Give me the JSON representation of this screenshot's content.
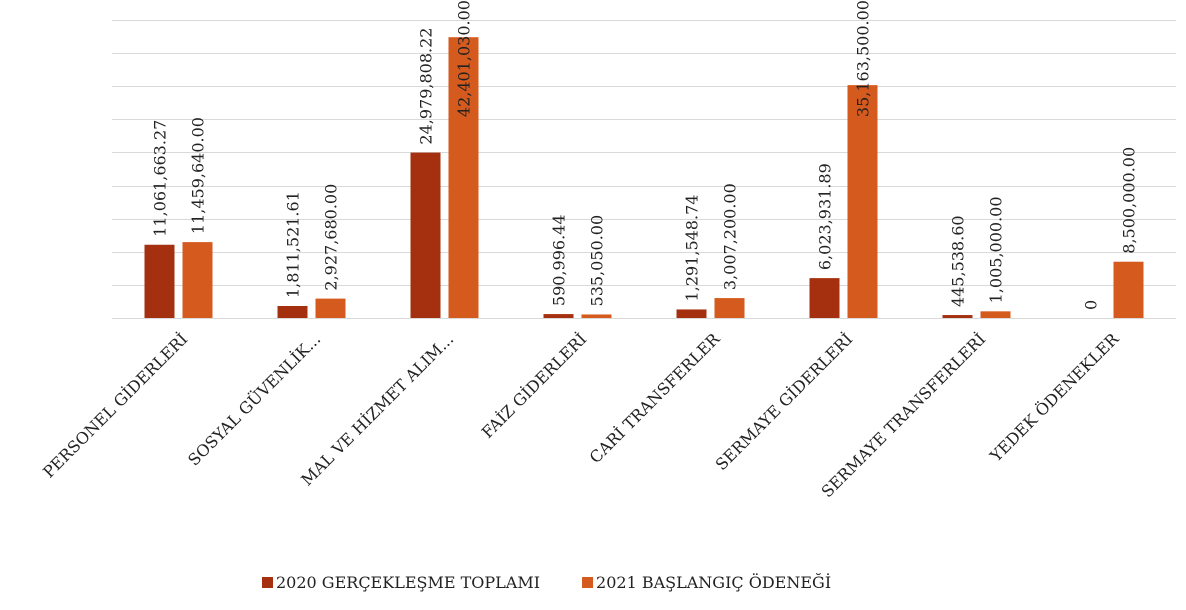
{
  "chart_data": {
    "type": "bar",
    "categories": [
      "PERSONEL GİDERLERİ",
      "SOSYAL GÜVENLİK...",
      "MAL VE HİZMET ALIM...",
      "FAİZ GİDERLERİ",
      "CARİ TRANSFERLER",
      "SERMAYE GİDERLERİ",
      "SERMAYE TRANSFERLERİ",
      "YEDEK ÖDENEKLER"
    ],
    "series": [
      {
        "name": "2020 GERÇEKLEŞME TOPLAMI",
        "color": "#a5300f",
        "values": [
          11061663.27,
          1811521.61,
          24979808.22,
          590996.44,
          1291548.74,
          6023931.89,
          445538.6,
          0
        ],
        "value_labels": [
          "11,061,663.27",
          "1,811,521.61",
          "24,979,808.22",
          "590,996.44",
          "1,291,548.74",
          "6,023,931.89",
          "445,538.60",
          "0"
        ]
      },
      {
        "name": "2021 BAŞLANGIÇ ÖDENEĞİ",
        "color": "#d55a1e",
        "values": [
          11459640.0,
          2927680.0,
          42401030.0,
          535050.0,
          3007200.0,
          35163500.0,
          1005000.0,
          8500000.0
        ],
        "value_labels": [
          "11,459,640.00",
          "2,927,680.00",
          "42,401,030.00",
          "535,050.00",
          "3,007,200.00",
          "35,163,500.00",
          "1,005,000.00",
          "8,500,000.00"
        ]
      }
    ],
    "ylim": [
      0,
      45000000
    ],
    "yticks": [
      0,
      5000000,
      10000000,
      15000000,
      20000000,
      25000000,
      30000000,
      35000000,
      40000000,
      45000000
    ],
    "grid": true,
    "legend": "bottom"
  }
}
